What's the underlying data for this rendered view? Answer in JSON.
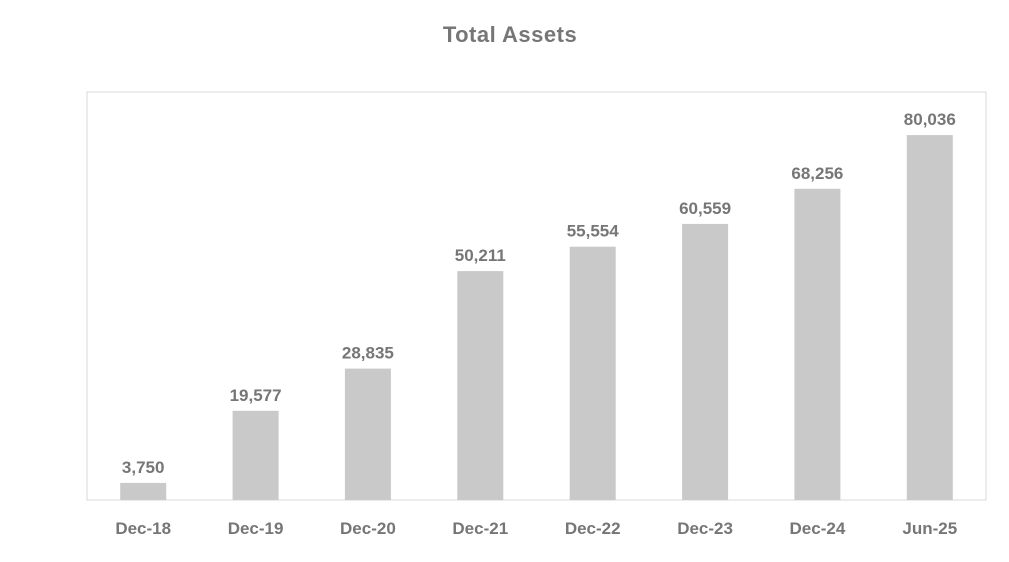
{
  "colors": {
    "bar": "#c9c9c9",
    "text": "#767676",
    "frame": "#d9d9d9",
    "background": "#ffffff"
  },
  "chart_data": {
    "type": "bar",
    "title": "Total Assets",
    "xlabel": "",
    "ylabel": "",
    "categories": [
      "Dec-18",
      "Dec-19",
      "Dec-20",
      "Dec-21",
      "Dec-22",
      "Dec-23",
      "Dec-24",
      "Jun-25"
    ],
    "values": [
      3750,
      19577,
      28835,
      50211,
      55554,
      60559,
      68256,
      80036
    ],
    "data_labels": [
      "3,750",
      "19,577",
      "28,835",
      "50,211",
      "55,554",
      "60,559",
      "68,256",
      "80,036"
    ],
    "ylim": [
      0,
      89500
    ],
    "grid": false,
    "legend": "none"
  }
}
